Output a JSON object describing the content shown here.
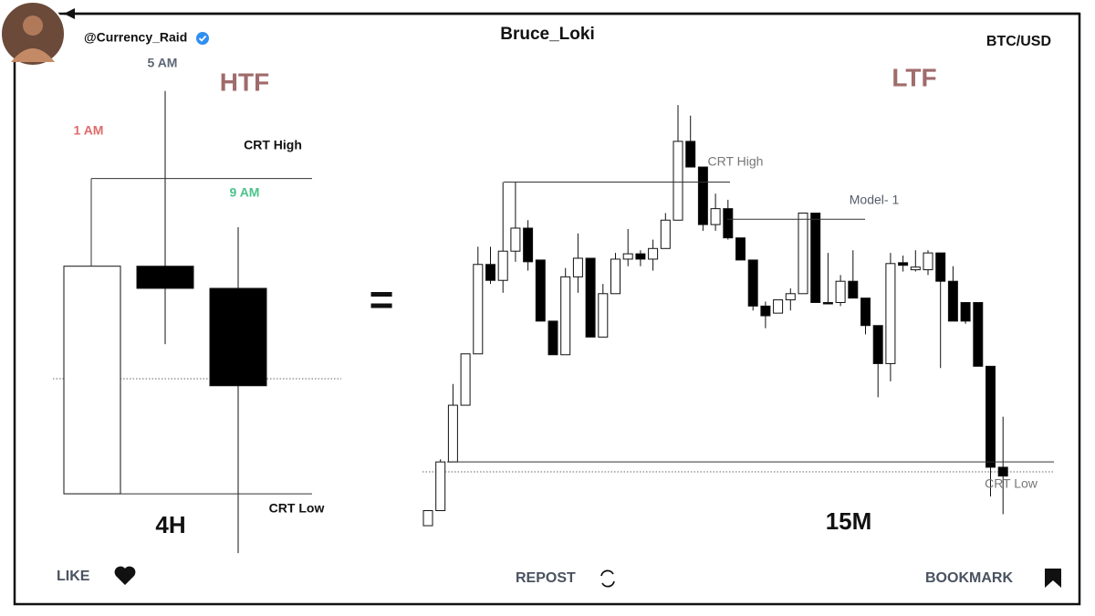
{
  "header": {
    "handle": "@Currency_Raid",
    "author": "Bruce_Loki",
    "pair": "BTC/USD"
  },
  "equals": "=",
  "chart_data": [
    {
      "type": "candlestick",
      "title": "HTF",
      "timeframe": "4H",
      "categories": [
        "1 AM",
        "5 AM",
        "9 AM"
      ],
      "category_colors": [
        "#e06a6a",
        "#5d6675",
        "#4cc38a"
      ],
      "open": [
        138,
        395,
        370
      ],
      "high": [
        395,
        593,
        439
      ],
      "low": [
        138,
        307,
        71
      ],
      "close": [
        395,
        370,
        260
      ],
      "up_color": "#ffffff",
      "down_color": "#000000",
      "ylim": [
        0,
        675
      ],
      "annotations": [
        {
          "text": "CRT High",
          "value": 494
        },
        {
          "text": "CRT Low",
          "value": 138
        }
      ]
    },
    {
      "type": "candlestick",
      "title": "LTF",
      "timeframe": "15M",
      "open": [
        102,
        119,
        174,
        238,
        296,
        397,
        379,
        412,
        438,
        402,
        333,
        295,
        383,
        404,
        315,
        364,
        403,
        409,
        403,
        415,
        447,
        536,
        507,
        442,
        460,
        427,
        402,
        350,
        342,
        357,
        364,
        455,
        354,
        354,
        378,
        359,
        328,
        285,
        399,
        391,
        391,
        410,
        378,
        354,
        354,
        282,
        168
      ],
      "high": [
        119,
        177,
        262,
        296,
        417,
        417,
        490,
        490,
        447,
        402,
        333,
        393,
        432,
        404,
        375,
        410,
        437,
        413,
        425,
        455,
        577,
        565,
        507,
        477,
        470,
        427,
        402,
        355,
        357,
        370,
        455,
        455,
        410,
        385,
        413,
        359,
        328,
        410,
        407,
        413,
        413,
        410,
        395,
        354,
        354,
        282,
        225
      ],
      "low": [
        102,
        119,
        174,
        238,
        296,
        375,
        365,
        400,
        390,
        333,
        295,
        295,
        365,
        315,
        315,
        364,
        395,
        395,
        390,
        415,
        447,
        507,
        435,
        435,
        425,
        402,
        345,
        325,
        342,
        345,
        364,
        354,
        353,
        350,
        359,
        318,
        247,
        265,
        389,
        389,
        385,
        280,
        333,
        330,
        282,
        135,
        115
      ],
      "close": [
        119,
        174,
        238,
        296,
        397,
        379,
        412,
        438,
        400,
        333,
        295,
        383,
        404,
        315,
        364,
        403,
        409,
        403,
        415,
        447,
        536,
        507,
        442,
        460,
        427,
        402,
        350,
        339,
        357,
        364,
        455,
        354,
        353,
        378,
        359,
        328,
        285,
        398,
        396,
        394,
        410,
        378,
        333,
        333,
        282,
        168,
        158
      ],
      "up_color": "#ffffff",
      "down_color": "#000000",
      "ylim": [
        0,
        675
      ],
      "annotations": [
        {
          "text": "CRT High",
          "value": 490
        },
        {
          "text": "Model- 1",
          "value": 448
        },
        {
          "text": "CRT Low",
          "value": 174
        }
      ]
    }
  ],
  "footer": {
    "like": "LIKE",
    "repost": "REPOST",
    "bookmark": "BOOKMARK"
  }
}
